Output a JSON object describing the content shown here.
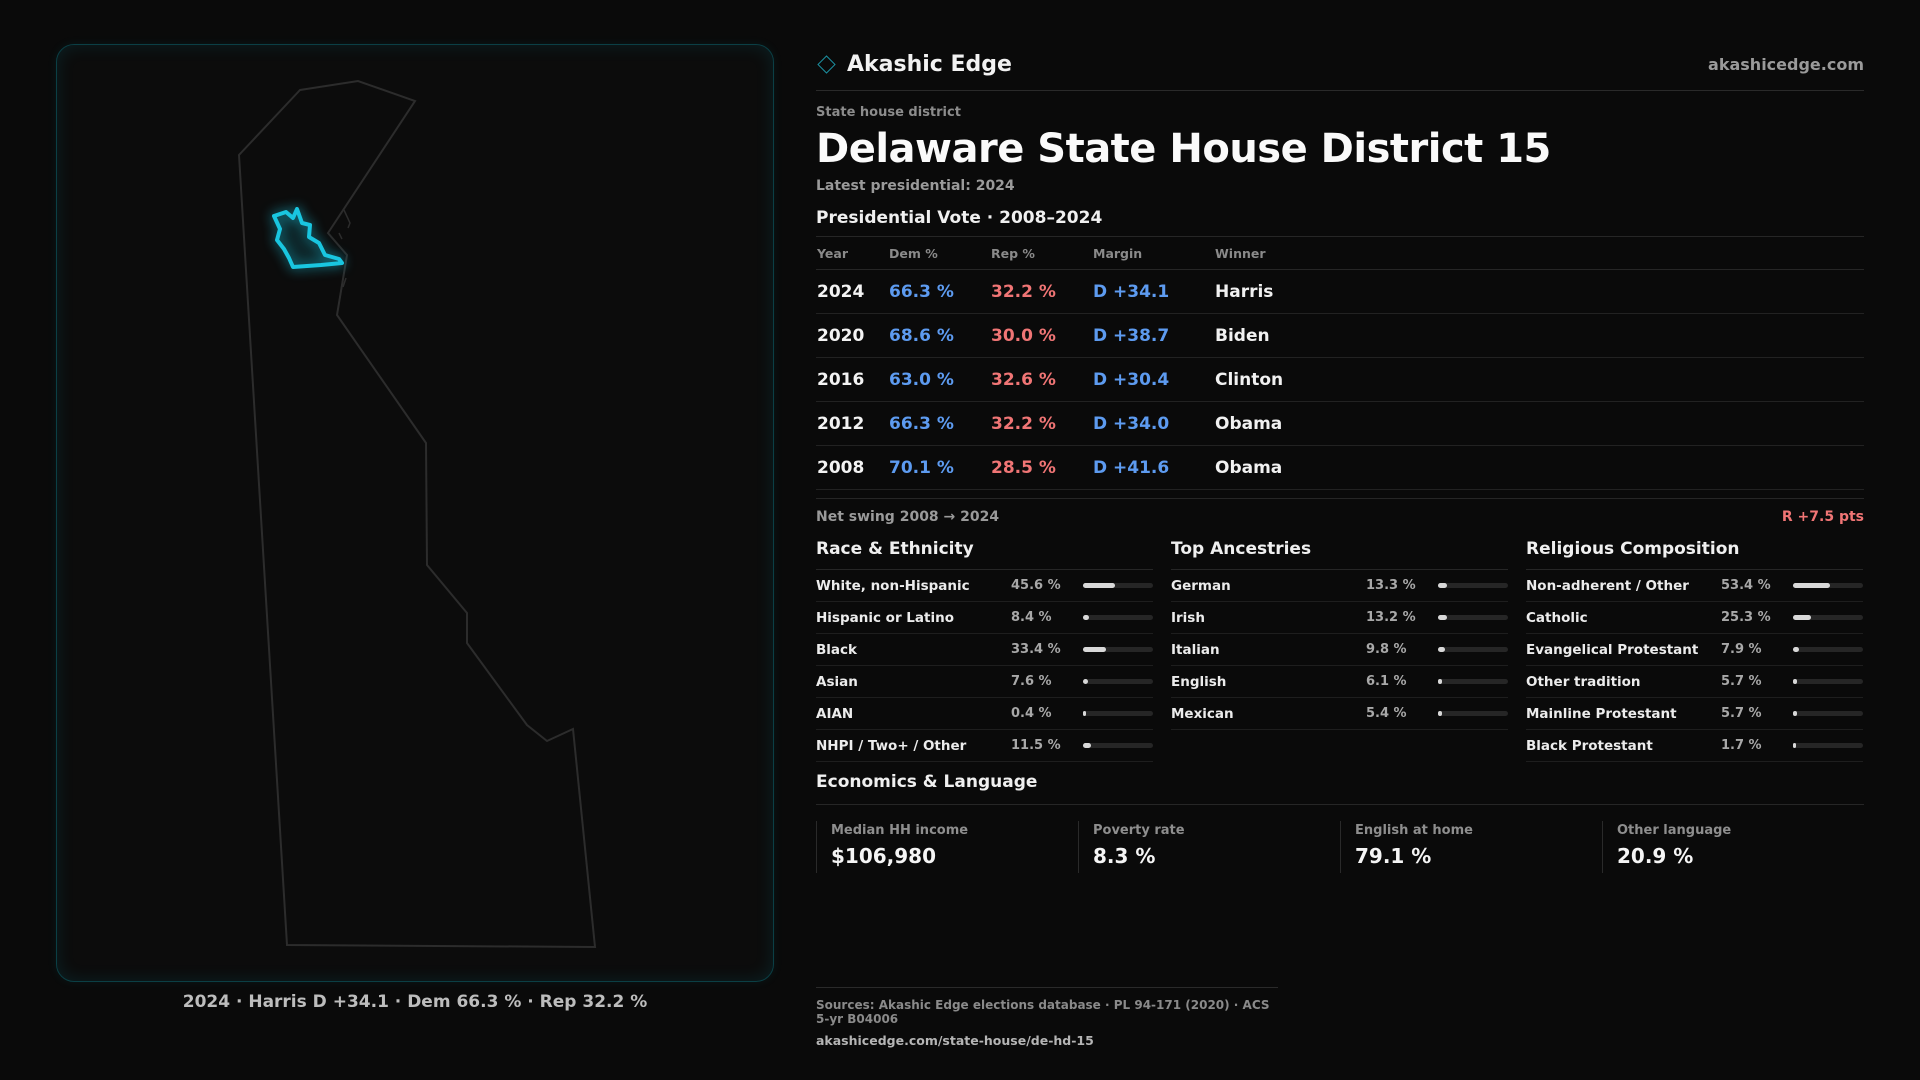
{
  "brand": {
    "name": "Akashic Edge",
    "url": "akashicedge.com"
  },
  "kicker": "State house district",
  "title": "Delaware State House District 15",
  "subtitle": "Latest presidential: 2024",
  "vote": {
    "heading": "Presidential Vote · 2008–2024",
    "columns": [
      "Year",
      "Dem %",
      "Rep %",
      "Margin",
      "Winner"
    ],
    "rows": [
      {
        "year": "2024",
        "dem": "66.3 %",
        "rep": "32.2 %",
        "margin": "D +34.1",
        "winner": "Harris"
      },
      {
        "year": "2020",
        "dem": "68.6 %",
        "rep": "30.0 %",
        "margin": "D +38.7",
        "winner": "Biden"
      },
      {
        "year": "2016",
        "dem": "63.0 %",
        "rep": "32.6 %",
        "margin": "D +30.4",
        "winner": "Clinton"
      },
      {
        "year": "2012",
        "dem": "66.3 %",
        "rep": "32.2 %",
        "margin": "D +34.0",
        "winner": "Obama"
      },
      {
        "year": "2008",
        "dem": "70.1 %",
        "rep": "28.5 %",
        "margin": "D +41.6",
        "winner": "Obama"
      }
    ]
  },
  "swing": {
    "label": "Net swing 2008 → 2024",
    "value": "R +7.5 pts"
  },
  "race": {
    "heading": "Race & Ethnicity",
    "rows": [
      {
        "label": "White, non-Hispanic",
        "value": "45.6 %",
        "pct": 45.6
      },
      {
        "label": "Hispanic or Latino",
        "value": "8.4 %",
        "pct": 8.4
      },
      {
        "label": "Black",
        "value": "33.4 %",
        "pct": 33.4
      },
      {
        "label": "Asian",
        "value": "7.6 %",
        "pct": 7.6
      },
      {
        "label": "AIAN",
        "value": "0.4 %",
        "pct": 0.4
      },
      {
        "label": "NHPI / Two+ / Other",
        "value": "11.5 %",
        "pct": 11.5
      }
    ]
  },
  "ancestry": {
    "heading": "Top Ancestries",
    "rows": [
      {
        "label": "German",
        "value": "13.3 %",
        "pct": 13.3
      },
      {
        "label": "Irish",
        "value": "13.2 %",
        "pct": 13.2
      },
      {
        "label": "Italian",
        "value": "9.8 %",
        "pct": 9.8
      },
      {
        "label": "English",
        "value": "6.1 %",
        "pct": 6.1
      },
      {
        "label": "Mexican",
        "value": "5.4 %",
        "pct": 5.4
      }
    ]
  },
  "religion": {
    "heading": "Religious Composition",
    "rows": [
      {
        "label": "Non-adherent / Other",
        "value": "53.4 %",
        "pct": 53.4
      },
      {
        "label": "Catholic",
        "value": "25.3 %",
        "pct": 25.3
      },
      {
        "label": "Evangelical Protestant",
        "value": "7.9 %",
        "pct": 7.9
      },
      {
        "label": "Other tradition",
        "value": "5.7 %",
        "pct": 5.7
      },
      {
        "label": "Mainline Protestant",
        "value": "5.7 %",
        "pct": 5.7
      },
      {
        "label": "Black Protestant",
        "value": "1.7 %",
        "pct": 1.7
      }
    ]
  },
  "econ": {
    "heading": "Economics & Language",
    "cells": [
      {
        "label": "Median HH income",
        "value": "$106,980"
      },
      {
        "label": "Poverty rate",
        "value": "8.3 %"
      },
      {
        "label": "English at home",
        "value": "79.1 %"
      },
      {
        "label": "Other language",
        "value": "20.9 %"
      }
    ]
  },
  "map": {
    "caption": "2024 · Harris D +34.1 · Dem 66.3 % · Rep 32.2 %",
    "district_color": "#19c6e0",
    "state_outline_color": "#2c2c2c"
  },
  "footer": {
    "sources": "Sources: Akashic Edge elections database · PL 94-171 (2020) · ACS 5-yr B04006",
    "url": "akashicedge.com/state-house/de-hd-15"
  },
  "colors": {
    "dem": "#5d9bf0",
    "rep": "#f07575"
  }
}
